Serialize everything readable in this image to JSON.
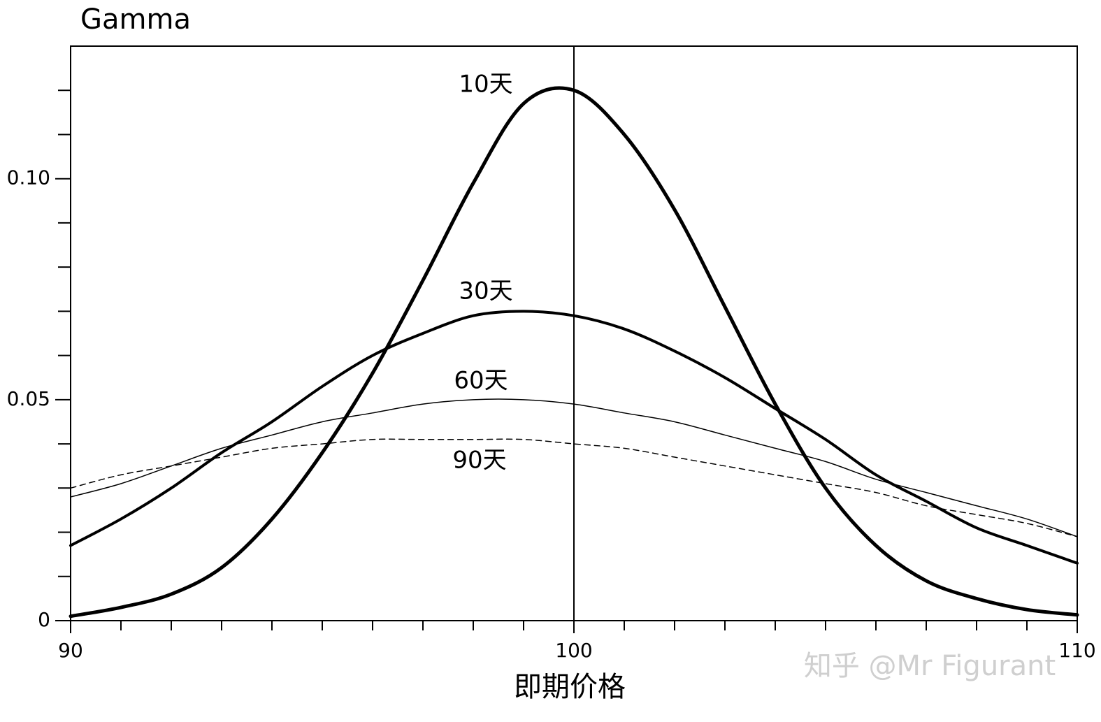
{
  "chart_data": {
    "type": "line",
    "title": "Gamma",
    "x_label": "即期价格",
    "watermark": "知乎 @Mr Figurant",
    "x": [
      90,
      91,
      92,
      93,
      94,
      95,
      96,
      97,
      98,
      99,
      100,
      101,
      102,
      103,
      104,
      105,
      106,
      107,
      108,
      109,
      110
    ],
    "series": [
      {
        "name": "10天",
        "color": "#000000",
        "width": 5,
        "dashed": false,
        "values": [
          0.001,
          0.003,
          0.006,
          0.012,
          0.023,
          0.038,
          0.056,
          0.077,
          0.099,
          0.117,
          0.12,
          0.11,
          0.093,
          0.071,
          0.049,
          0.03,
          0.017,
          0.009,
          0.005,
          0.0025,
          0.0013
        ]
      },
      {
        "name": "30天",
        "color": "#000000",
        "width": 4,
        "dashed": false,
        "values": [
          0.017,
          0.023,
          0.03,
          0.038,
          0.045,
          0.053,
          0.06,
          0.065,
          0.069,
          0.07,
          0.069,
          0.066,
          0.061,
          0.055,
          0.048,
          0.041,
          0.033,
          0.027,
          0.021,
          0.017,
          0.013
        ]
      },
      {
        "name": "60天",
        "color": "#000000",
        "width": 1.5,
        "dashed": false,
        "values": [
          0.028,
          0.031,
          0.035,
          0.039,
          0.042,
          0.045,
          0.047,
          0.049,
          0.05,
          0.05,
          0.049,
          0.047,
          0.045,
          0.042,
          0.039,
          0.036,
          0.032,
          0.029,
          0.026,
          0.023,
          0.019
        ]
      },
      {
        "name": "90天",
        "color": "#000000",
        "width": 1.5,
        "dashed": true,
        "values": [
          0.03,
          0.033,
          0.035,
          0.037,
          0.039,
          0.04,
          0.041,
          0.041,
          0.041,
          0.041,
          0.04,
          0.039,
          0.037,
          0.035,
          0.033,
          0.031,
          0.029,
          0.026,
          0.024,
          0.022,
          0.019
        ]
      }
    ],
    "xlim": [
      90,
      110
    ],
    "xticks": [
      90,
      100,
      110
    ],
    "xminorticks": [
      91,
      92,
      93,
      94,
      95,
      96,
      97,
      98,
      99,
      101,
      102,
      103,
      104,
      105,
      106,
      107,
      108,
      109
    ],
    "ylim": [
      0,
      0.13
    ],
    "yticks": [
      0,
      {
        "value": 0.05,
        "label": "0.05"
      },
      {
        "value": 0.1,
        "label": "0.10"
      }
    ],
    "yminorticks": [
      0.01,
      0.02,
      0.03,
      0.04,
      0.06,
      0.07,
      0.08,
      0.09,
      0.11,
      0.12
    ],
    "vline": 100
  }
}
